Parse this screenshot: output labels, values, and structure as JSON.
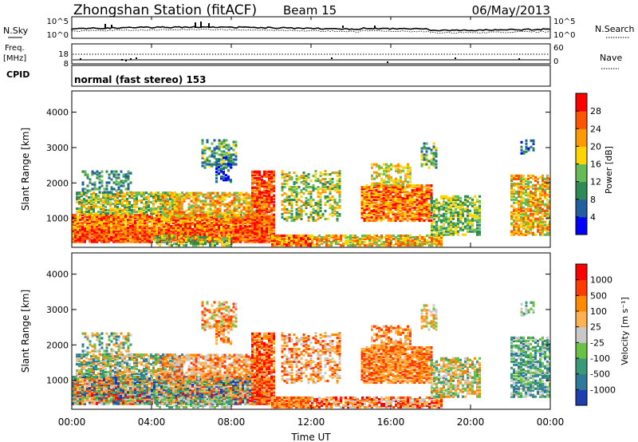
{
  "header": {
    "title": "Zhongshan Station (fitACF)",
    "beam": "Beam 15",
    "date": "06/May/2013"
  },
  "noise_panel": {
    "left_label": "N.Sky",
    "left_ticks": [
      "10^5",
      "10^0"
    ],
    "right_label": "N.Search",
    "right_ticks": [
      "10^5",
      "10^0"
    ]
  },
  "freq_panel": {
    "left_label_line1": "Freq.",
    "left_label_line2": "[MHz]",
    "left_ticks": [
      "18",
      "8"
    ],
    "right_label": "Nave",
    "right_ticks": [
      "60",
      "0"
    ],
    "cpid_label": "CPID"
  },
  "cpid_text": "normal (fast stereo) 153",
  "chart_data": [
    {
      "type": "heatmap",
      "name": "power",
      "ylabel": "Slant Range [km]",
      "ylim": [
        180,
        4600
      ],
      "yticks": [
        "1000",
        "2000",
        "3000",
        "4000"
      ],
      "colorbar": {
        "label": "Power [dB]",
        "ticks": [
          "28",
          "24",
          "20",
          "16",
          "12",
          "8",
          "4"
        ],
        "range": [
          0,
          32
        ],
        "colors": [
          "#0000ff",
          "#2060a0",
          "#2e8b57",
          "#66bb55",
          "#ffd400",
          "#ff9900",
          "#ff5500",
          "#ff0000"
        ]
      }
    },
    {
      "type": "heatmap",
      "name": "velocity",
      "ylabel": "Slant Range [km]",
      "ylim": [
        180,
        4600
      ],
      "yticks": [
        "1000",
        "2000",
        "3000",
        "4000"
      ],
      "xlabel": "Time UT",
      "xticks": [
        "00:00",
        "04:00",
        "08:00",
        "12:00",
        "16:00",
        "20:00",
        "00:00"
      ],
      "colorbar": {
        "label": "Velocity [m s⁻¹]",
        "ticks": [
          "1000",
          "500",
          "100",
          "25",
          "-25",
          "-100",
          "-500",
          "-1000"
        ],
        "colors": [
          "#1f3fb0",
          "#2f7a9a",
          "#3a9a78",
          "#6ac244",
          "#c8c8c8",
          "#ffb050",
          "#ff8a00",
          "#ff3c00",
          "#ff0000"
        ]
      }
    }
  ]
}
